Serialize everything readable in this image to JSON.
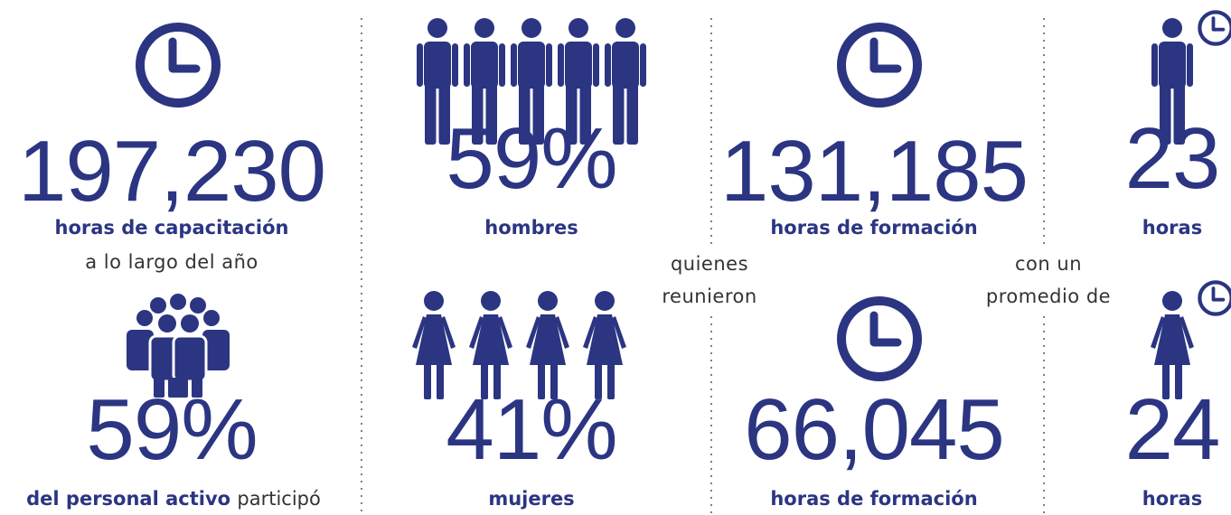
{
  "blocks": [
    {
      "number": "197,230",
      "label": "horas de capacitación",
      "note": "a lo largo del año"
    },
    {
      "number": "59%",
      "label": "del personal activo",
      "note": "participó"
    },
    {
      "number": "59%",
      "label": "hombres"
    },
    {
      "number": "41%",
      "label": "mujeres"
    },
    {
      "number": "131,185",
      "label": "horas de formación"
    },
    {
      "number": "66,045",
      "label": "horas de formación"
    },
    {
      "number": "23",
      "label": "horas"
    },
    {
      "number": "24",
      "label": "horas"
    }
  ],
  "connectors": [
    {
      "lines": [
        "quienes",
        "reunieron"
      ]
    },
    {
      "lines": [
        "con un",
        "promedio de"
      ]
    }
  ]
}
